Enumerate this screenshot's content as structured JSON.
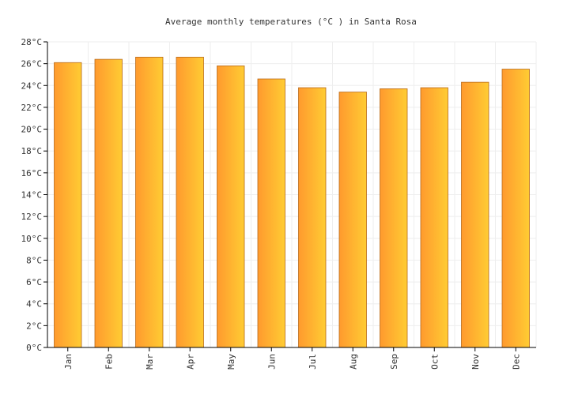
{
  "chart_data": {
    "type": "bar",
    "title": "Average monthly temperatures (°C ) in Santa Rosa",
    "xlabel": "",
    "ylabel": "",
    "categories": [
      "Jan",
      "Feb",
      "Mar",
      "Apr",
      "May",
      "Jun",
      "Jul",
      "Aug",
      "Sep",
      "Oct",
      "Nov",
      "Dec"
    ],
    "values": [
      26.1,
      26.4,
      26.6,
      26.6,
      25.8,
      24.6,
      23.8,
      23.4,
      23.7,
      23.8,
      24.3,
      25.5
    ],
    "ylim": [
      0,
      28
    ],
    "y_ticks": [
      "0°C",
      "2°C",
      "4°C",
      "6°C",
      "8°C",
      "10°C",
      "12°C",
      "14°C",
      "16°C",
      "18°C",
      "20°C",
      "22°C",
      "24°C",
      "26°C",
      "28°C"
    ],
    "grid": true,
    "legend": "none",
    "colors": {
      "bar_gradient_start": "#ff9a2e",
      "bar_gradient_end": "#ffcc33",
      "bar_stroke": "#b86a1a",
      "grid": "#eeeeee",
      "axis": "#000000"
    }
  }
}
